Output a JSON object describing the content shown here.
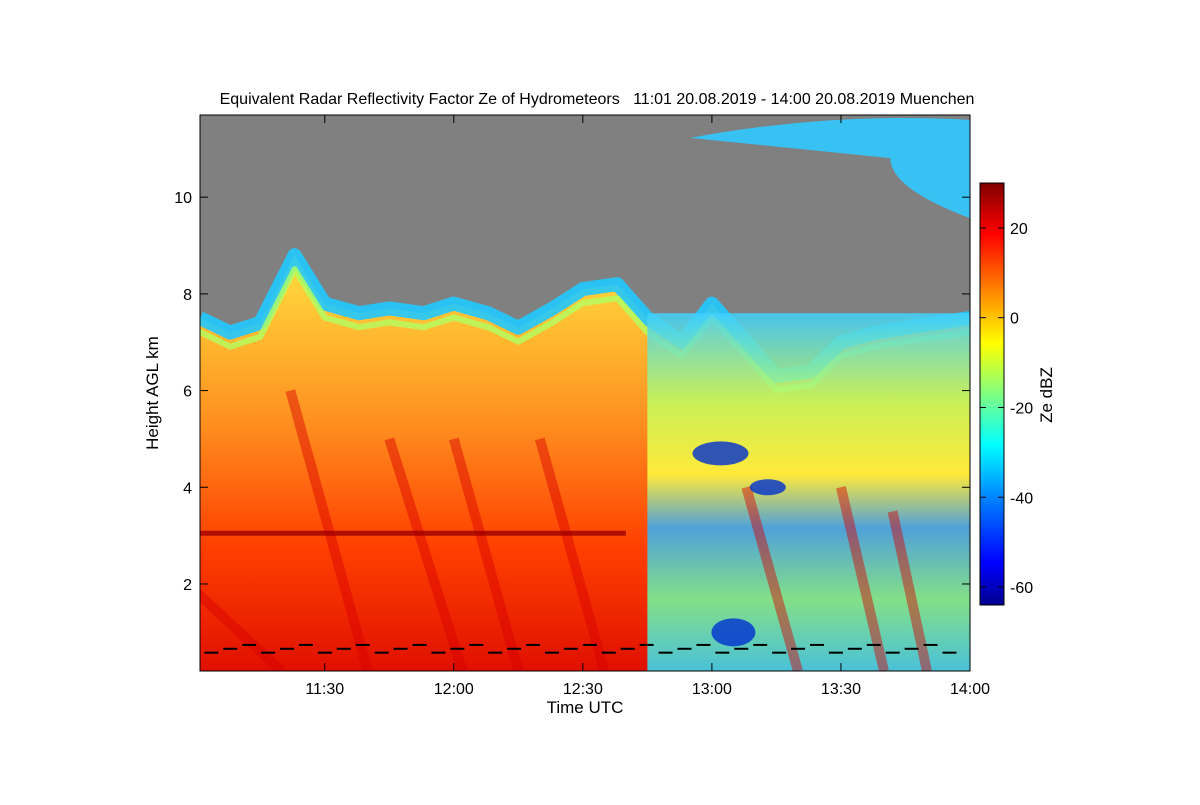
{
  "chart_data": {
    "type": "heatmap",
    "title": "Equivalent Radar Reflectivity Factor Ze of Hydrometeors   11:01 20.08.2019 - 14:00 20.08.2019 Muenchen",
    "xlabel": "Time UTC",
    "ylabel": "Height AGL km",
    "colorbar_label": "Ze dBZ",
    "x_ticks": [
      "11:30",
      "12:00",
      "12:30",
      "13:00",
      "13:30",
      "14:00"
    ],
    "x_tick_minutes": [
      30,
      60,
      90,
      120,
      150,
      180
    ],
    "xlim_minutes": [
      1,
      180
    ],
    "y_ticks": [
      2,
      4,
      6,
      8,
      10
    ],
    "ylim": [
      0.2,
      11.7
    ],
    "colorbar_ticks": [
      20,
      0,
      -20,
      -40,
      -60
    ],
    "colorbar_range": [
      -64,
      30
    ],
    "no_data_color": "#808080",
    "colormap": [
      "#00008f",
      "#0000ff",
      "#0080ff",
      "#00ffff",
      "#80ff80",
      "#ffff00",
      "#ff8000",
      "#ff0000",
      "#800000"
    ],
    "cloud_top_km": [
      7.5,
      7.2,
      7.4,
      8.8,
      7.8,
      7.6,
      7.7,
      7.6,
      7.8,
      7.6,
      7.3,
      7.7,
      8.1,
      8.2,
      7.5,
      7.0,
      7.8,
      7.0,
      6.3,
      6.4,
      7.0,
      7.2,
      7.3,
      7.5
    ],
    "segment_minutes": [
      1,
      8,
      15,
      23,
      30,
      38,
      45,
      53,
      60,
      68,
      75,
      83,
      90,
      98,
      105,
      113,
      120,
      128,
      135,
      143,
      150,
      158,
      165,
      180
    ],
    "upper_cloud_layer_km": [
      10.6,
      11.6
    ],
    "upper_cloud_minutes": [
      115,
      180
    ],
    "melting_layer_km": 3.05
  }
}
